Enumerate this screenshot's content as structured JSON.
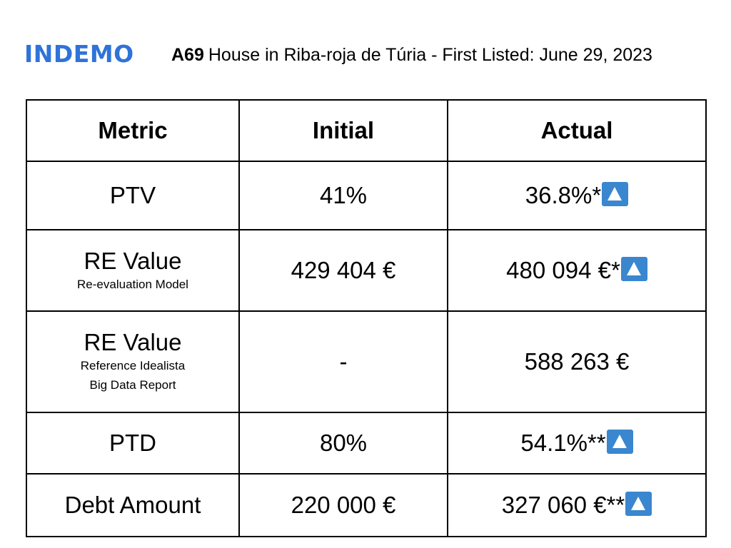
{
  "brand": {
    "logo_text": "INDEMO",
    "logo_color": "#2f73d8",
    "accent_icon_color": "#3a86cf"
  },
  "header": {
    "code": "A69",
    "title": "House in Riba-roja de Túria - First Listed: June 29, 2023"
  },
  "table": {
    "columns": [
      "Metric",
      "Initial",
      "Actual"
    ],
    "rows": [
      {
        "metric": "PTV",
        "sub": [],
        "initial": "41%",
        "actual": "36.8%*",
        "actual_icon": "up-arrow-icon"
      },
      {
        "metric": "RE Value",
        "sub": [
          "Re-evaluation Model"
        ],
        "initial": "429 404 €",
        "actual": "480 094 €*",
        "actual_icon": "up-arrow-icon"
      },
      {
        "metric": "RE Value",
        "sub": [
          "Reference Idealista",
          "Big Data Report"
        ],
        "initial": "-",
        "actual": "588 263 €",
        "actual_icon": null
      },
      {
        "metric": "PTD",
        "sub": [],
        "initial": "80%",
        "actual": "54.1%**",
        "actual_icon": "up-arrow-icon"
      },
      {
        "metric": "Debt Amount",
        "sub": [],
        "initial": "220 000 €",
        "actual": "327 060 €**",
        "actual_icon": "up-arrow-icon"
      }
    ]
  }
}
